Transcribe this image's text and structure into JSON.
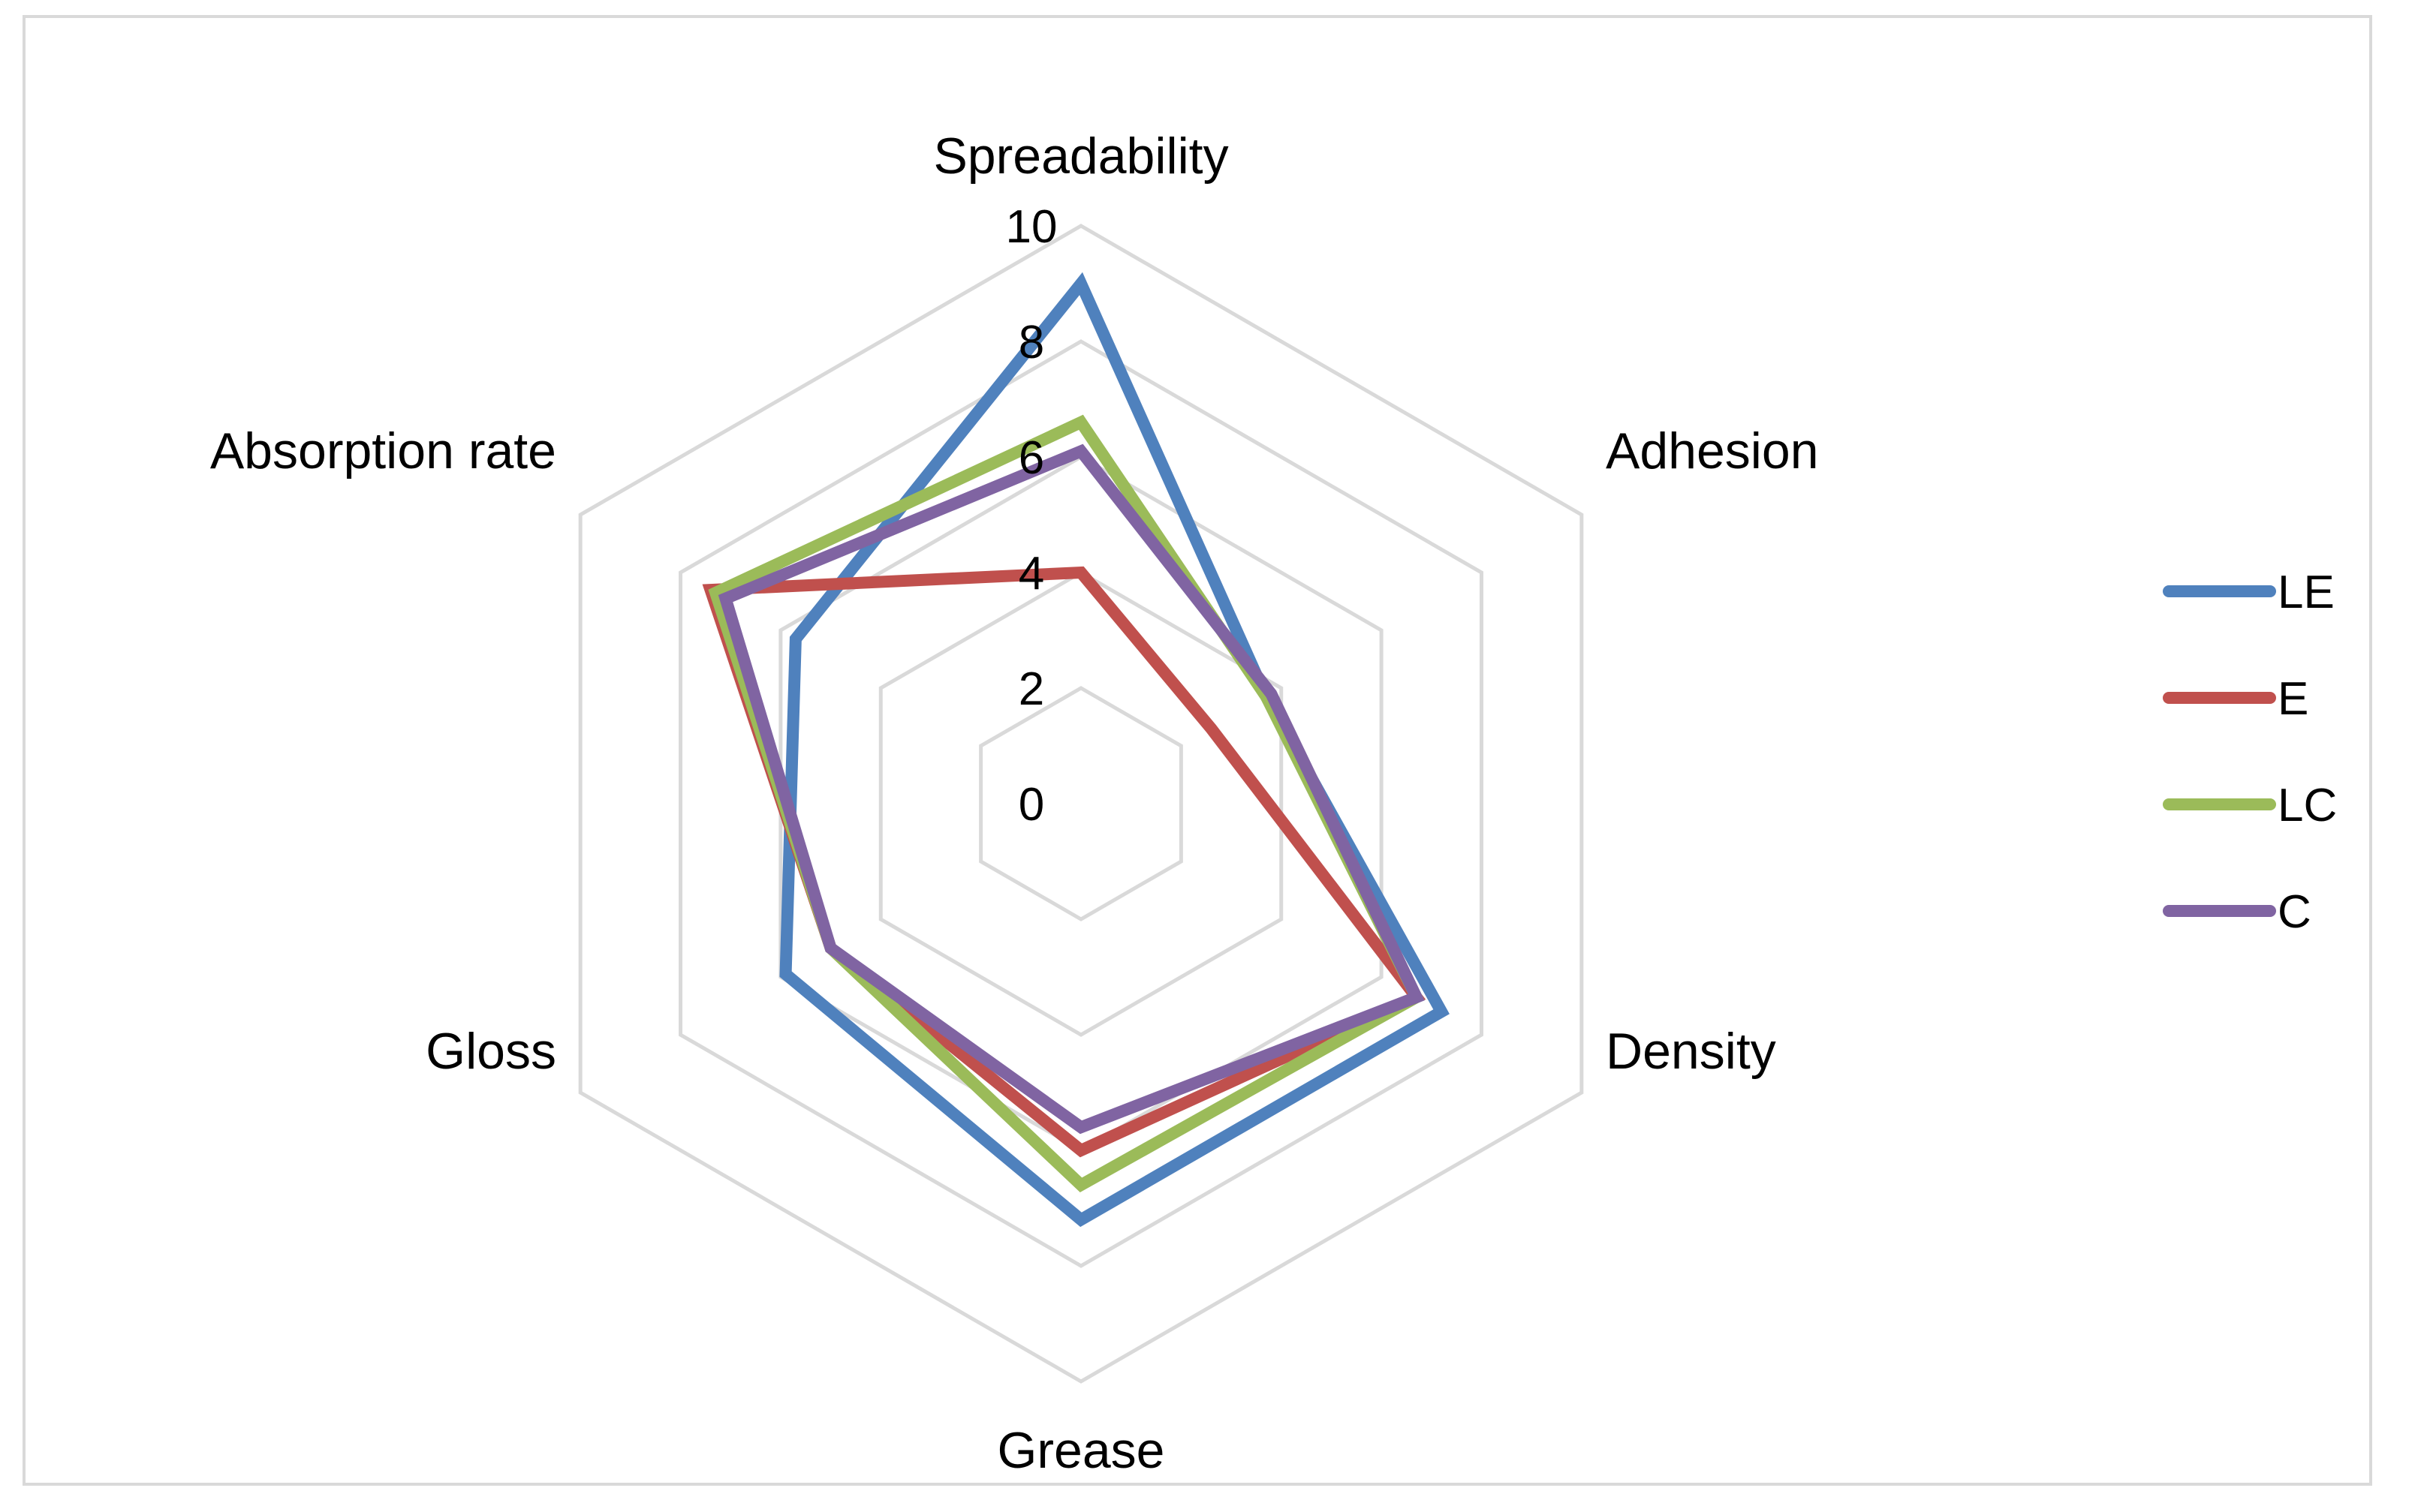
{
  "chart_data": {
    "type": "radar",
    "axes": [
      "Spreadability",
      "Adhesion",
      "Density",
      "Grease",
      "Gloss",
      "Absorption rate"
    ],
    "range": [
      0,
      10
    ],
    "ticks": [
      "0",
      "2",
      "4",
      "6",
      "8",
      "10"
    ],
    "grid": true,
    "legend_position": "right",
    "series": [
      {
        "name": "LE",
        "color": "#4f81bd",
        "values": [
          9.0,
          3.7,
          7.2,
          7.2,
          5.9,
          5.7
        ]
      },
      {
        "name": "E",
        "color": "#c0504d",
        "values": [
          4.0,
          2.6,
          6.7,
          6.0,
          5.0,
          7.4
        ]
      },
      {
        "name": "LC",
        "color": "#9bbb59",
        "values": [
          6.6,
          3.7,
          6.7,
          6.6,
          5.0,
          7.3
        ]
      },
      {
        "name": "C",
        "color": "#8064a2",
        "values": [
          6.1,
          3.8,
          6.7,
          5.6,
          5.0,
          7.1
        ]
      }
    ]
  }
}
